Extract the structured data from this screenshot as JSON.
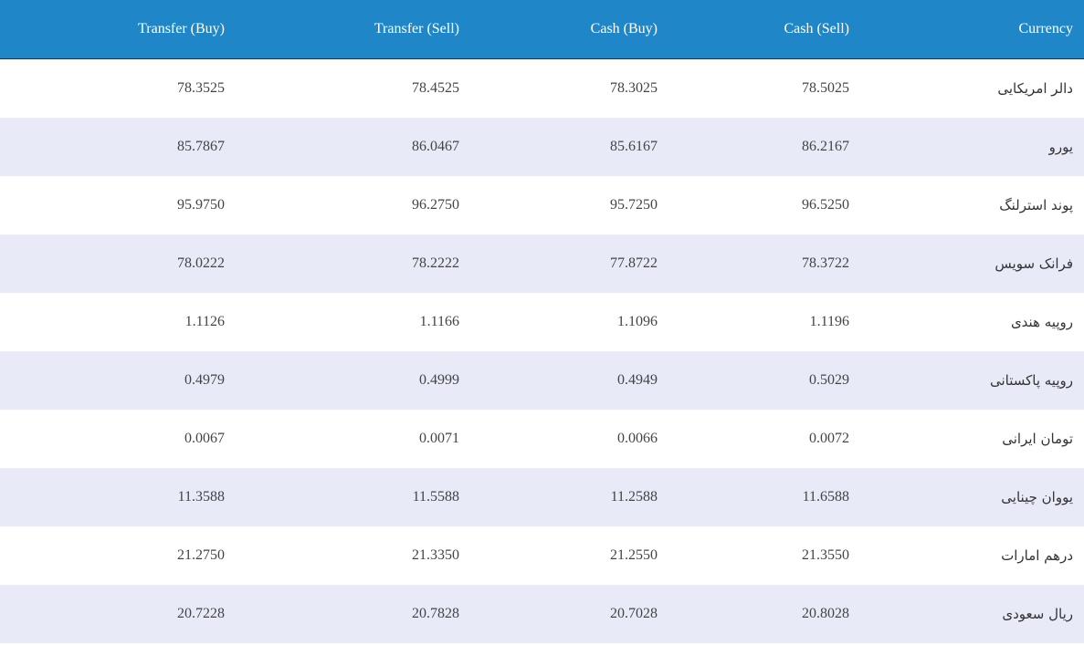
{
  "table": {
    "header": [
      "Transfer (Buy)",
      "Transfer (Sell)",
      "Cash (Buy)",
      "Cash (Sell)",
      "Currency"
    ],
    "rows": [
      [
        "78.3525",
        "78.4525",
        "78.3025",
        "78.5025",
        "دالر امریکایی"
      ],
      [
        "85.7867",
        "86.0467",
        "85.6167",
        "86.2167",
        "یورو"
      ],
      [
        "95.9750",
        "96.2750",
        "95.7250",
        "96.5250",
        "پوند استرلنگ"
      ],
      [
        "78.0222",
        "78.2222",
        "77.8722",
        "78.3722",
        "فرانک سویس"
      ],
      [
        "1.1126",
        "1.1166",
        "1.1096",
        "1.1196",
        "روپیه هندی"
      ],
      [
        "0.4979",
        "0.4999",
        "0.4949",
        "0.5029",
        "روپیه پاکستانی"
      ],
      [
        "0.0067",
        "0.0071",
        "0.0066",
        "0.0072",
        "تومان ایرانی"
      ],
      [
        "11.3588",
        "11.5588",
        "11.2588",
        "11.6588",
        "یووان چینایی"
      ],
      [
        "21.2750",
        "21.3350",
        "21.2550",
        "21.3550",
        "درهم امارات"
      ],
      [
        "20.7228",
        "20.7828",
        "20.7028",
        "20.8028",
        "ریال سعودی"
      ]
    ]
  }
}
